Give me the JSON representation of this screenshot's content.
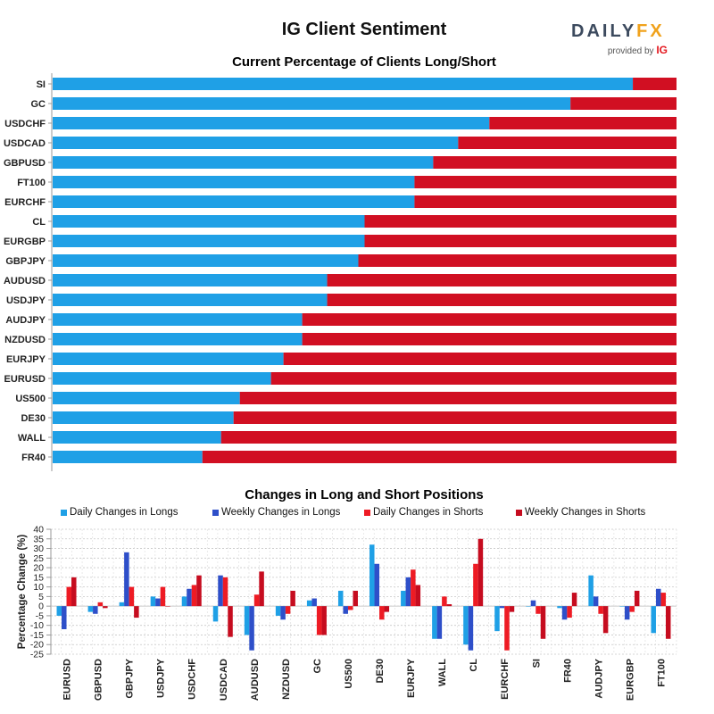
{
  "title": "IG Client Sentiment",
  "logo": {
    "brand_a": "DAILY",
    "brand_b": "FX",
    "provided": "provided by",
    "ig": "IG"
  },
  "colors": {
    "long": "#1fa0e6",
    "short": "#d10f22",
    "daily_longs": "#1fa0e6",
    "weekly_longs": "#2e4fc9",
    "daily_shorts": "#ee1b24",
    "weekly_shorts": "#c60c1f"
  },
  "chart_data": [
    {
      "type": "bar",
      "orientation": "horizontal",
      "stacked": true,
      "title": "Current Percentage of Clients Long/Short",
      "categories": [
        "SI",
        "GC",
        "USDCHF",
        "USDCAD",
        "GBPUSD",
        "FT100",
        "EURCHF",
        "CL",
        "EURGBP",
        "GBPJPY",
        "AUDUSD",
        "USDJPY",
        "AUDJPY",
        "NZDUSD",
        "EURJPY",
        "EURUSD",
        "US500",
        "DE30",
        "WALL",
        "FR40"
      ],
      "series": [
        {
          "values": [
            93,
            83,
            70,
            65,
            61,
            58,
            58,
            50,
            50,
            49,
            44,
            44,
            40,
            40,
            37,
            35,
            30,
            29,
            27,
            24
          ]
        },
        {
          "values": [
            7,
            17,
            30,
            35,
            39,
            42,
            42,
            50,
            50,
            51,
            56,
            56,
            60,
            60,
            63,
            65,
            70,
            71,
            73,
            76
          ]
        }
      ],
      "xlim": [
        0,
        100
      ]
    },
    {
      "type": "bar",
      "title": "Changes in Long and Short Positions",
      "ylabel": "Percentage Change (%)",
      "ylim": [
        -25,
        40
      ],
      "yticks": [
        40,
        35,
        30,
        25,
        20,
        15,
        10,
        5,
        0,
        -5,
        -10,
        -15,
        -20,
        -25
      ],
      "categories": [
        "EURUSD",
        "GBPUSD",
        "GBPJPY",
        "USDJPY",
        "USDCHF",
        "USDCAD",
        "AUDUSD",
        "NZDUSD",
        "GC",
        "US500",
        "DE30",
        "EURJPY",
        "WALL",
        "CL",
        "EURCHF",
        "SI",
        "FR40",
        "AUDJPY",
        "EURGBP",
        "FT100"
      ],
      "series": [
        {
          "name": "Daily Changes in Longs",
          "values": [
            -5,
            -3,
            2,
            5,
            5,
            -8,
            -15,
            -5,
            3,
            8,
            32,
            8,
            -17,
            -20,
            -13,
            0,
            -1,
            16,
            0,
            -14
          ]
        },
        {
          "name": "Weekly Changes in Longs",
          "values": [
            -12,
            -4,
            28,
            4,
            9,
            16,
            -23,
            -7,
            4,
            -4,
            22,
            15,
            -17,
            -23,
            -1,
            3,
            -7,
            5,
            -7,
            9
          ]
        },
        {
          "name": "Daily Changes in Shorts",
          "values": [
            10,
            2,
            10,
            10,
            11,
            15,
            6,
            -4,
            -15,
            -2,
            -7,
            19,
            5,
            22,
            -23,
            -4,
            -6,
            -4,
            -3,
            7
          ]
        },
        {
          "name": "Weekly Changes in Shorts",
          "values": [
            15,
            -1,
            -6,
            0,
            16,
            -16,
            18,
            8,
            -15,
            8,
            -3,
            11,
            1,
            35,
            -3,
            -17,
            7,
            -14,
            8,
            -17
          ]
        }
      ]
    }
  ]
}
